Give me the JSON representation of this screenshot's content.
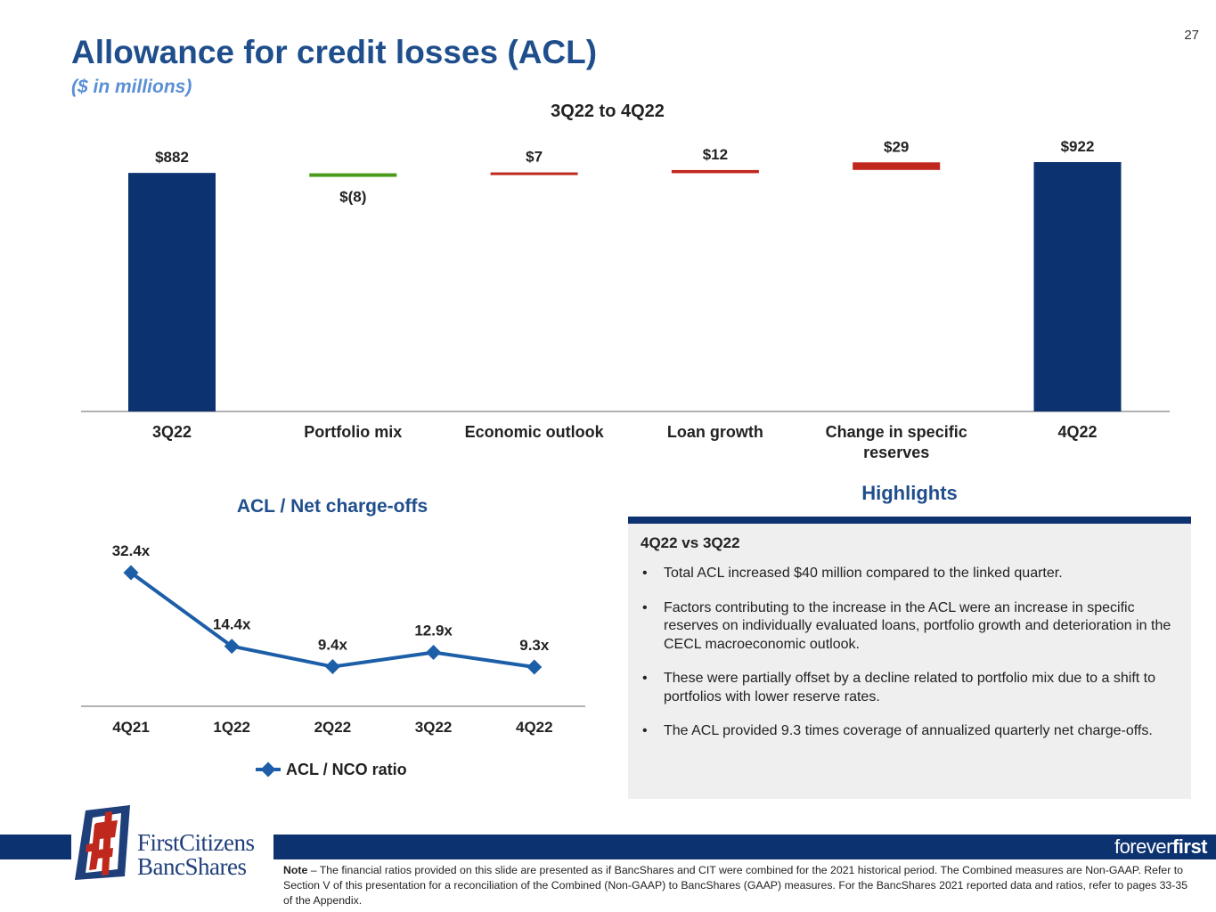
{
  "page_number": "27",
  "header": {
    "title": "Allowance for credit losses (ACL)",
    "subtitle": "($ in millions)"
  },
  "highlights": {
    "title": "Highlights",
    "subheading": "4Q22 vs 3Q22",
    "bullets": [
      "Total ACL increased $40 million compared to the linked quarter.",
      "Factors contributing to the increase in the ACL were an increase in specific reserves on individually evaluated loans, portfolio growth and deterioration in the CECL macroeconomic outlook.",
      "These were partially offset by a decline related to portfolio mix due to a shift to portfolios with lower reserve rates.",
      "The ACL provided 9.3 times coverage of annualized quarterly net charge-offs."
    ]
  },
  "footer": {
    "logo_line1": "FirstCitizens",
    "logo_line2": "BancShares",
    "tagline_a": "forever",
    "tagline_b": "first",
    "note_label": "Note",
    "note_text": " – The financial ratios provided on this slide are presented as if BancShares and CIT were combined for the 2021 historical period. The Combined measures are Non-GAAP. Refer to Section V of this presentation for a reconciliation of the Combined (Non-GAAP) to BancShares (GAAP) measures. For the BancShares 2021 reported data and ratios, refer to pages 33-35 of the Appendix."
  },
  "colors": {
    "navy": "#0d3270",
    "title_blue": "#1f4e8c",
    "line_blue": "#1c5ea8",
    "increase_red": "#c0281e",
    "decrease_green": "#4a9a1a",
    "axis_gray": "#999999"
  },
  "chart_data": [
    {
      "type": "bar",
      "subtype": "waterfall",
      "title": "3Q22 to 4Q22",
      "categories": [
        "3Q22",
        "Portfolio mix",
        "Economic outlook",
        "Loan growth",
        "Change in specific reserves",
        "4Q22"
      ],
      "values": [
        882,
        -8,
        7,
        12,
        29,
        922
      ],
      "kinds": [
        "total",
        "decrease",
        "increase",
        "increase",
        "increase",
        "total"
      ],
      "labels": [
        "$882",
        "$(8)",
        "$7",
        "$12",
        "$29",
        "$922"
      ],
      "ylim": [
        0,
        922
      ]
    },
    {
      "type": "line",
      "title": "ACL / Net charge-offs",
      "categories": [
        "4Q21",
        "1Q22",
        "2Q22",
        "3Q22",
        "4Q22"
      ],
      "series": [
        {
          "name": "ACL / NCO ratio",
          "values": [
            32.4,
            14.4,
            9.4,
            12.9,
            9.3
          ],
          "labels": [
            "32.4x",
            "14.4x",
            "9.4x",
            "12.9x",
            "9.3x"
          ]
        }
      ]
    }
  ]
}
